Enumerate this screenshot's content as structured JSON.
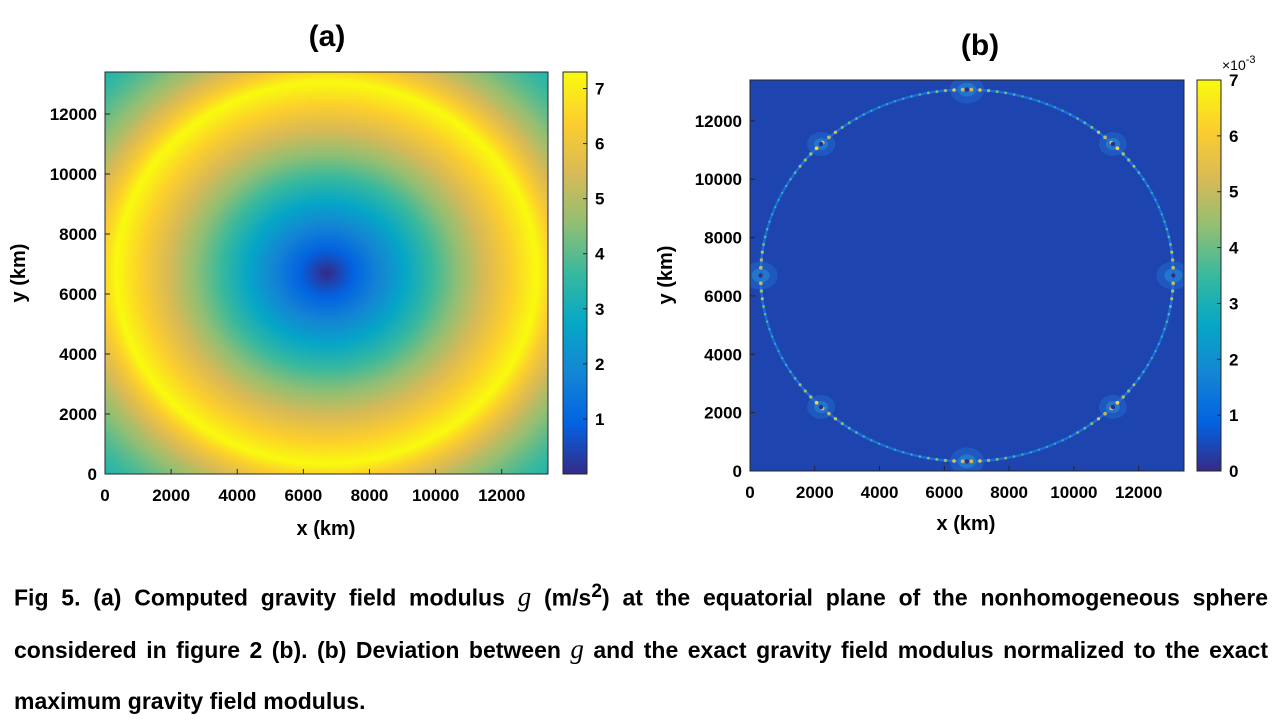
{
  "caption": {
    "part1": "Fig 5. (a) Computed gravity field modulus ",
    "symbol": "g",
    "unit_open": " (m/s",
    "unit_sup": "2",
    "part2": ") at the equatorial plane of the nonhomogeneous sphere considered in figure 2 (b). (b) Deviation between ",
    "symbol2": "g",
    "part3": " and the exact gravity field modulus normalized to the exact maximum gravity field modulus."
  },
  "chart_data": [
    {
      "type": "heatmap",
      "panel_label": "(a)",
      "xlabel": "x (km)",
      "ylabel": "y (km)",
      "xlim": [
        0,
        13400
      ],
      "ylim": [
        0,
        13400
      ],
      "xticks": [
        0,
        2000,
        4000,
        6000,
        8000,
        10000,
        12000
      ],
      "yticks": [
        0,
        2000,
        4000,
        6000,
        8000,
        10000,
        12000
      ],
      "center": [
        6700,
        6700
      ],
      "sphere_radius": 6371,
      "colormap": "parula",
      "colorbar": {
        "min": 0,
        "max": 7.3,
        "ticks": [
          1,
          2,
          3,
          4,
          5,
          6,
          7
        ]
      },
      "field_profile": {
        "r_km": [
          0,
          6371,
          9476
        ],
        "value": [
          0,
          7.3,
          3.3
        ]
      }
    },
    {
      "type": "heatmap",
      "panel_label": "(b)",
      "xlabel": "x (km)",
      "ylabel": "y (km)",
      "xlim": [
        0,
        13400
      ],
      "ylim": [
        0,
        13400
      ],
      "xticks": [
        0,
        2000,
        4000,
        6000,
        8000,
        10000,
        12000
      ],
      "yticks": [
        0,
        2000,
        4000,
        6000,
        8000,
        10000,
        12000
      ],
      "center": [
        6700,
        6700
      ],
      "sphere_radius": 6371,
      "colormap": "parula",
      "colorbar": {
        "min": 0,
        "max": 7,
        "ticks": [
          0,
          1,
          2,
          3,
          4,
          5,
          6,
          7
        ],
        "exponent_label": "×10",
        "exponent": "-3"
      },
      "background_value": 0.4,
      "hotspot_angles_deg": [
        0,
        45,
        90,
        135,
        180,
        225,
        270,
        315
      ]
    }
  ],
  "colors": {
    "parula": [
      "#352a87",
      "#0363e1",
      "#1485d4",
      "#06a7c6",
      "#38b99e",
      "#92bf73",
      "#d9ba56",
      "#fcce2e",
      "#f9fb0e"
    ]
  }
}
